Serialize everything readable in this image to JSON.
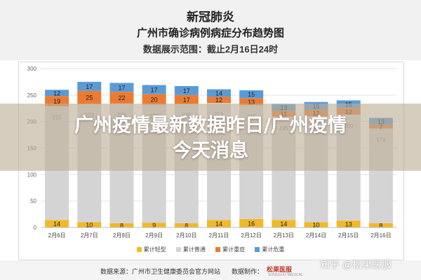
{
  "header": {
    "title": "新冠肺炎",
    "subtitle": "广州市确诊病例病症分布趋势图",
    "range": "数据展示范围：截止2月16日24时"
  },
  "banner": {
    "line1": "广州疫情最新数据昨日/广州疫情",
    "line2": "今天消息"
  },
  "footer": {
    "source": "数据来源：广州市卫生健康委员会官方网站",
    "producer": "数据制作：",
    "logo": "松果医服",
    "logo_sub": "SONGGUO MEDICAL"
  },
  "watermark": "知乎 @松果医服",
  "colors": {
    "light": "#f2b825",
    "normal": "#d4d4d4",
    "severe": "#ec7b31",
    "critical": "#5b9bd5"
  },
  "chart_data": {
    "type": "bar",
    "stacked": true,
    "categories": [
      "2月6日",
      "2月7日",
      "2月8日",
      "2月9日",
      "2月10日",
      "2月11日",
      "2月12日",
      "2月13日",
      "2月14日",
      "2月15日",
      "2月16日"
    ],
    "series": [
      {
        "name": "累计轻型",
        "values": [
          14,
          10,
          8,
          9,
          8,
          14,
          16,
          14,
          10,
          13,
          8
        ],
        "color": "#f2b825"
      },
      {
        "name": "累计普通",
        "values": [
          215,
          223,
          226,
          223,
          225,
          221,
          215,
          195,
          200,
          200,
          179
        ],
        "color": "#d4d4d4"
      },
      {
        "name": "累计重症",
        "values": [
          19,
          25,
          22,
          20,
          17,
          12,
          13,
          11,
          12,
          12,
          7
        ],
        "color": "#ec7b31"
      },
      {
        "name": "累计危重",
        "values": [
          12,
          17,
          17,
          17,
          17,
          14,
          15,
          13,
          15,
          15,
          13
        ],
        "color": "#5b9bd5"
      }
    ],
    "ylim": [
      0,
      300
    ],
    "yticks": [
      0,
      50,
      100,
      150,
      200,
      250,
      300
    ],
    "grid": true,
    "legend": "bottom"
  }
}
